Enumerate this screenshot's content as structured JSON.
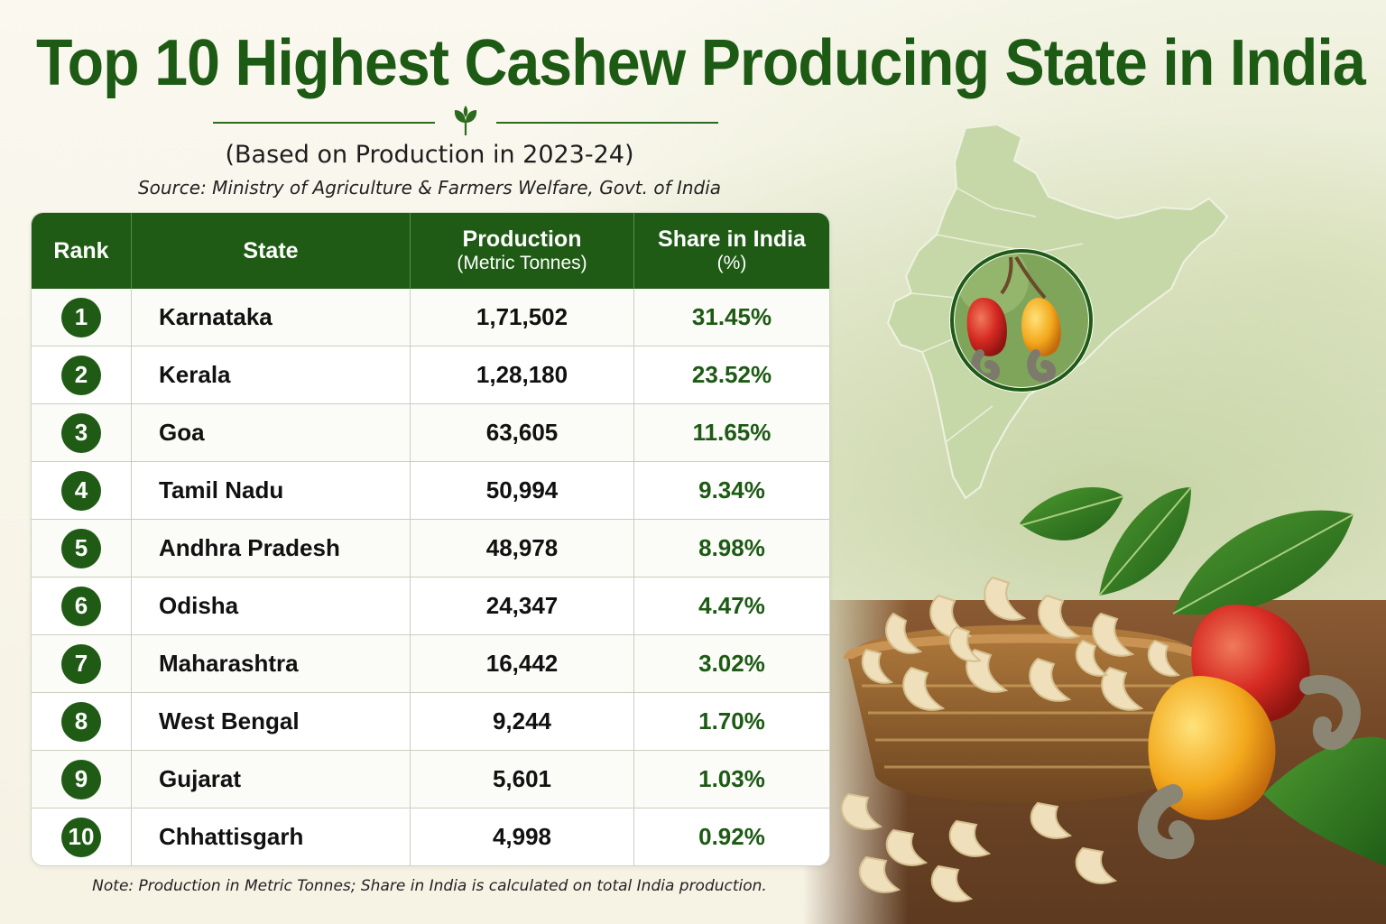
{
  "header": {
    "title": "Top 10 Highest Cashew Producing State in India",
    "subtitle": "(Based on Production in 2023-24)",
    "source": "Source: Ministry of Agriculture & Farmers Welfare, Govt. of India"
  },
  "table": {
    "columns": {
      "rank": "Rank",
      "state": "State",
      "production": "Production",
      "production_unit": "(Metric Tonnes)",
      "share": "Share in India",
      "share_unit": "(%)"
    },
    "rows": [
      {
        "rank": "1",
        "state": "Karnataka",
        "production": "1,71,502",
        "share": "31.45%"
      },
      {
        "rank": "2",
        "state": "Kerala",
        "production": "1,28,180",
        "share": "23.52%"
      },
      {
        "rank": "3",
        "state": "Goa",
        "production": "63,605",
        "share": "11.65%"
      },
      {
        "rank": "4",
        "state": "Tamil Nadu",
        "production": "50,994",
        "share": "9.34%"
      },
      {
        "rank": "5",
        "state": "Andhra Pradesh",
        "production": "48,978",
        "share": "8.98%"
      },
      {
        "rank": "6",
        "state": "Odisha",
        "production": "24,347",
        "share": "4.47%"
      },
      {
        "rank": "7",
        "state": "Maharashtra",
        "production": "16,442",
        "share": "3.02%"
      },
      {
        "rank": "8",
        "state": "West Bengal",
        "production": "9,244",
        "share": "1.70%"
      },
      {
        "rank": "9",
        "state": "Gujarat",
        "production": "5,601",
        "share": "1.03%"
      },
      {
        "rank": "10",
        "state": "Chhattisgarh",
        "production": "4,998",
        "share": "0.92%"
      }
    ]
  },
  "footer": {
    "note": "Note: Production in Metric Tonnes; Share in India is calculated on total India production."
  },
  "theme": {
    "primary_green": "#1f5b15",
    "title_green": "#1d5a14",
    "background": "#f7f4ea"
  },
  "icons": {
    "divider": "leaf-sprout-icon",
    "map": "india-map-icon",
    "fruit": "cashew-apple-icon"
  }
}
